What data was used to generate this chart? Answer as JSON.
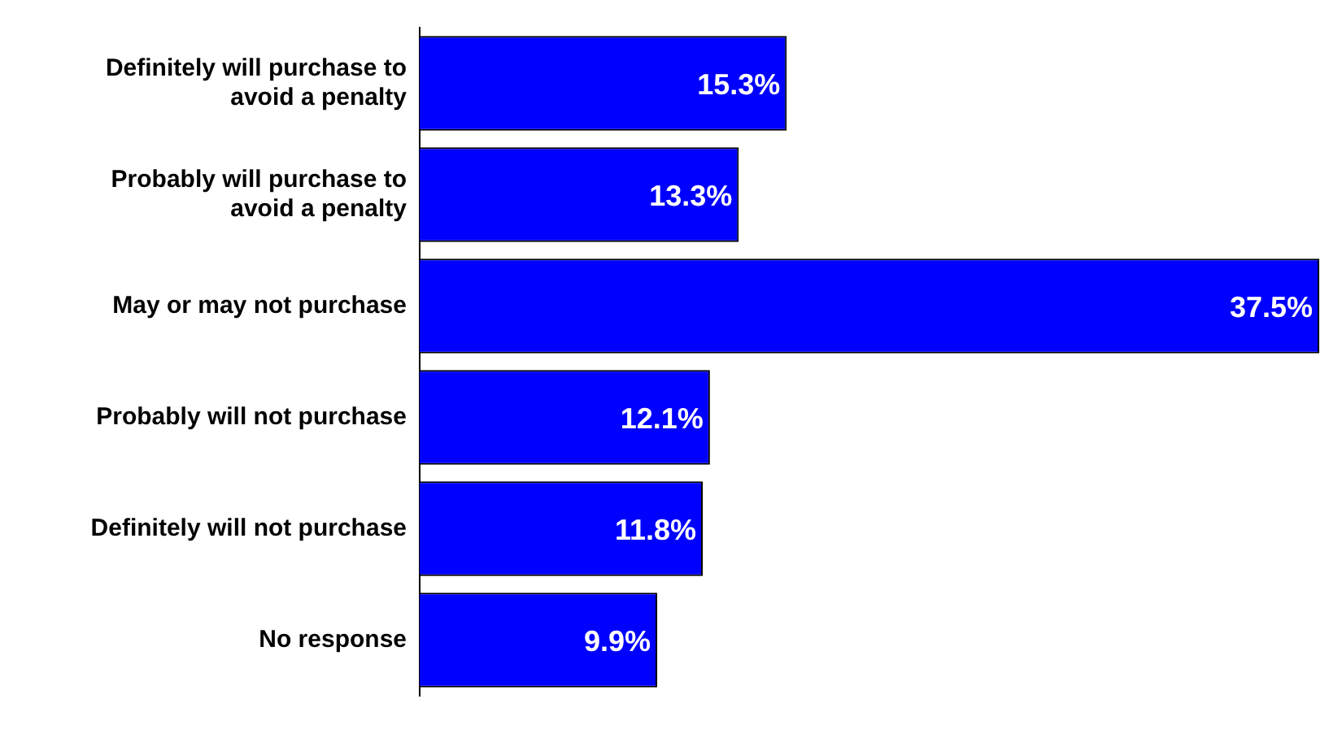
{
  "chart_data": {
    "type": "bar",
    "orientation": "horizontal",
    "categories": [
      "Definitely will purchase to avoid a penalty",
      "Probably will purchase to avoid a penalty",
      "May or may not purchase",
      "Probably will not purchase",
      "Definitely will not purchase",
      "No response"
    ],
    "values": [
      15.3,
      13.3,
      37.5,
      12.1,
      11.8,
      9.9
    ],
    "value_labels": [
      "15.3%",
      "13.3%",
      "37.5%",
      "12.1%",
      "11.8%",
      "9.9%"
    ],
    "color": "#0000ff"
  }
}
